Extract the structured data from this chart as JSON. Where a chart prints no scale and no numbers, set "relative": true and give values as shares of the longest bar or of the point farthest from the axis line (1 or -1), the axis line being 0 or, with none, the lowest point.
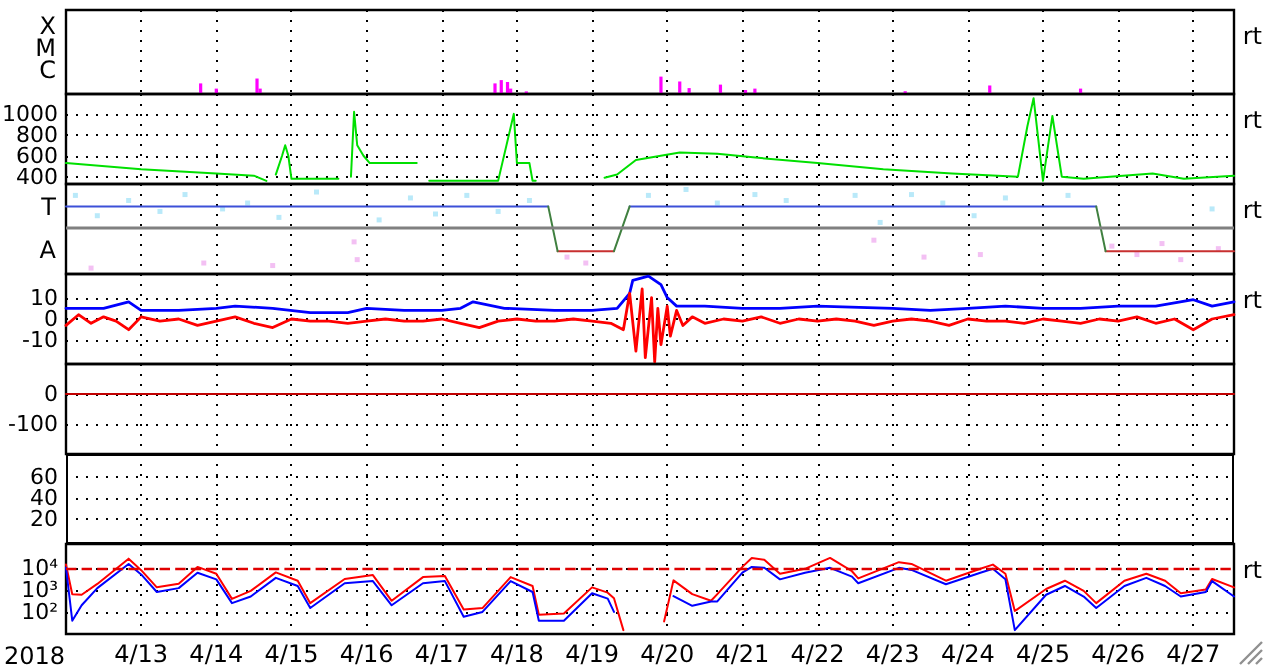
{
  "chart_data": [
    {
      "type": "bar",
      "relative": true,
      "grid": "x",
      "tick_labels": "y",
      "annotations": [
        "rt",
        "X",
        "M",
        "C"
      ],
      "xlim": [
        "2018-04-12T00:00",
        "2018-04-27T13:00"
      ],
      "xticks": [
        {
          "value": "2018-04-13",
          "label": null
        },
        {
          "value": "2018-04-14",
          "label": null
        },
        {
          "value": "2018-04-15",
          "label": null
        },
        {
          "value": "2018-04-16",
          "label": null
        },
        {
          "value": "2018-04-17",
          "label": null
        },
        {
          "value": "2018-04-18",
          "label": null
        },
        {
          "value": "2018-04-19",
          "label": null
        },
        {
          "value": "2018-04-20",
          "label": null
        },
        {
          "value": "2018-04-21",
          "label": null
        },
        {
          "value": "2018-04-22",
          "label": null
        },
        {
          "value": "2018-04-23",
          "label": null
        },
        {
          "value": "2018-04-24",
          "label": null
        },
        {
          "value": "2018-04-25",
          "label": null
        },
        {
          "value": "2018-04-26",
          "label": null
        },
        {
          "value": "2018-04-27",
          "label": null
        }
      ],
      "series": [
        {
          "color": "#ff00ff",
          "x": [
            "2018-04-13T19:00",
            "2018-04-14T00:00",
            "2018-04-14T13:00",
            "2018-04-14T14:00",
            "2018-04-17T17:00",
            "2018-04-17T19:00",
            "2018-04-17T21:00",
            "2018-04-17T22:00",
            "2018-04-18T03:00",
            "2018-04-19T22:00",
            "2018-04-20T04:00",
            "2018-04-20T07:00",
            "2018-04-20T17:00",
            "2018-04-21T01:00",
            "2018-04-21T04:00",
            "2018-04-23T04:00",
            "2018-04-24T07:00",
            "2018-04-25T12:00"
          ],
          "values": [
            0.61,
            0.31,
            0.89,
            0.31,
            0.61,
            0.8,
            0.69,
            0.31,
            0.15,
            1,
            0.72,
            0.34,
            0.54,
            0.23,
            0.31,
            0.16,
            0.49,
            0.31
          ]
        }
      ]
    },
    {
      "type": "line",
      "grid": true,
      "tick_labels": "y",
      "annotations": [
        "rt"
      ],
      "xlim": [
        "2018-04-12T00:00",
        "2018-04-27T13:00"
      ],
      "xticks": [
        {
          "value": "2018-04-13",
          "label": null
        },
        {
          "value": "2018-04-14",
          "label": null
        },
        {
          "value": "2018-04-15",
          "label": null
        },
        {
          "value": "2018-04-16",
          "label": null
        },
        {
          "value": "2018-04-17",
          "label": null
        },
        {
          "value": "2018-04-18",
          "label": null
        },
        {
          "value": "2018-04-19",
          "label": null
        },
        {
          "value": "2018-04-20",
          "label": null
        },
        {
          "value": "2018-04-21",
          "label": null
        },
        {
          "value": "2018-04-22",
          "label": null
        },
        {
          "value": "2018-04-23",
          "label": null
        },
        {
          "value": "2018-04-24",
          "label": null
        },
        {
          "value": "2018-04-25",
          "label": null
        },
        {
          "value": "2018-04-26",
          "label": null
        },
        {
          "value": "2018-04-27",
          "label": null
        }
      ],
      "ylim": [
        330,
        1190
      ],
      "yticks": [
        400,
        600,
        800,
        1000
      ],
      "series": [
        {
          "color": "#00e000",
          "x": [
            "2018-04-12T00:00",
            "2018-04-13T00:00",
            "2018-04-14T00:00",
            "2018-04-14T12:00",
            "2018-04-14T16:00",
            "2018-04-14T18:00",
            "2018-04-14T19:00",
            "2018-04-14T21:00",
            "2018-04-14T22:00",
            "2018-04-14T23:00",
            "2018-04-15T00:00",
            "2018-04-15T15:00",
            "2018-04-15T17:00",
            "2018-04-15T19:00",
            "2018-04-15T20:00",
            "2018-04-15T21:00",
            "2018-04-15T23:00",
            "2018-04-16T01:00",
            "2018-04-16T16:00",
            "2018-04-16T18:00",
            "2018-04-16T20:00",
            "2018-04-17T18:00",
            "2018-04-17T23:00",
            "2018-04-18T00:00",
            "2018-04-18T04:00",
            "2018-04-18T05:00",
            "2018-04-18T06:00",
            "2018-04-18T12:00",
            "2018-04-19T04:00",
            "2018-04-19T08:00",
            "2018-04-19T14:00",
            "2018-04-20T04:00",
            "2018-04-20T16:00",
            "2018-04-21T05:00",
            "2018-04-22T00:00",
            "2018-04-22T21:00",
            "2018-04-23T19:00",
            "2018-04-24T16:00",
            "2018-04-24T19:00",
            "2018-04-24T21:00",
            "2018-04-25T00:00",
            "2018-04-25T03:00",
            "2018-04-25T06:00",
            "2018-04-25T13:00",
            "2018-04-26T11:00",
            "2018-04-26T21:00",
            "2018-04-27T13:00"
          ],
          "values": [
            530,
            470,
            430,
            410,
            360,
            null,
            420,
            600,
            700,
            600,
            380,
            380,
            null,
            400,
            1020,
            700,
            600,
            530,
            530,
            null,
            360,
            360,
            1000,
            530,
            530,
            360,
            360,
            null,
            390,
            420,
            560,
            630,
            620,
            580,
            530,
            470,
            430,
            400,
            880,
            1150,
            360,
            980,
            400,
            380,
            430,
            380,
            410
          ]
        }
      ]
    },
    {
      "type": "line",
      "relative": true,
      "grid": "x",
      "tick_labels": "y",
      "annotations": [
        "rt",
        "T",
        "A"
      ],
      "xlim": [
        "2018-04-12T00:00",
        "2018-04-27T13:00"
      ],
      "xticks": [
        {
          "value": "2018-04-13",
          "label": null
        },
        {
          "value": "2018-04-14",
          "label": null
        },
        {
          "value": "2018-04-15",
          "label": null
        },
        {
          "value": "2018-04-16",
          "label": null
        },
        {
          "value": "2018-04-17",
          "label": null
        },
        {
          "value": "2018-04-18",
          "label": null
        },
        {
          "value": "2018-04-19",
          "label": null
        },
        {
          "value": "2018-04-20",
          "label": null
        },
        {
          "value": "2018-04-21",
          "label": null
        },
        {
          "value": "2018-04-22",
          "label": null
        },
        {
          "value": "2018-04-23",
          "label": null
        },
        {
          "value": "2018-04-24",
          "label": null
        },
        {
          "value": "2018-04-25",
          "label": null
        },
        {
          "value": "2018-04-26",
          "label": null
        },
        {
          "value": "2018-04-27",
          "label": null
        }
      ],
      "ref_lines": [
        {
          "axis": "y",
          "value": 0.54,
          "color": "#808080"
        }
      ],
      "series": [
        {
          "type": "scatter",
          "marker": "square",
          "color": "#a8e4f8",
          "x": [
            "2018-04-12T03:00",
            "2018-04-12T10:00",
            "2018-04-12T20:00",
            "2018-04-13T06:00",
            "2018-04-13T14:00",
            "2018-04-14T02:00",
            "2018-04-14T10:00",
            "2018-04-14T20:00",
            "2018-04-15T08:00",
            "2018-04-15T16:00",
            "2018-04-16T04:00",
            "2018-04-16T14:00",
            "2018-04-16T22:00",
            "2018-04-17T08:00",
            "2018-04-17T18:00",
            "2018-04-18T04:00",
            "2018-04-19T18:00",
            "2018-04-20T06:00",
            "2018-04-20T16:00",
            "2018-04-21T04:00",
            "2018-04-21T14:00",
            "2018-04-22T00:00",
            "2018-04-22T12:00",
            "2018-04-22T20:00",
            "2018-04-23T06:00",
            "2018-04-23T16:00",
            "2018-04-24T02:00",
            "2018-04-24T12:00",
            "2018-04-24T22:00",
            "2018-04-25T08:00",
            "2018-04-27T06:00"
          ],
          "values": [
            0.93,
            0.69,
            0.87,
            0.74,
            0.94,
            0.77,
            0.84,
            0.67,
            0.97,
            null,
            0.64,
            0.9,
            0.71,
            0.93,
            0.74,
            0.87,
            0.93,
            1,
            0.84,
            0.94,
            0.87,
            null,
            0.93,
            0.61,
            0.94,
            0.84,
            0.69,
            0.9,
            null,
            0.93,
            0.77
          ]
        },
        {
          "type": "scatter",
          "marker": "square",
          "color": "#f0b0f0",
          "x": [
            "2018-04-12T08:00",
            "2018-04-13T20:00",
            "2018-04-14T18:00",
            "2018-04-15T20:00",
            "2018-04-15T21:00",
            "2018-04-18T16:00",
            "2018-04-18T22:00",
            "2018-04-19T04:00",
            "2018-04-22T18:00",
            "2018-04-23T10:00",
            "2018-04-24T04:00",
            "2018-04-25T22:00",
            "2018-04-26T06:00",
            "2018-04-26T14:00",
            "2018-04-26T20:00",
            "2018-04-27T08:00"
          ],
          "values": [
            0.07,
            0.13,
            0.1,
            0.38,
            0.17,
            0.2,
            0.13,
            null,
            0.4,
            0.2,
            0.23,
            0.33,
            0.23,
            0.36,
            0.17,
            0.3
          ]
        },
        {
          "color": "#3c50d8",
          "x": [
            "2018-04-12T00:00",
            "2018-04-18T10:00",
            "2018-04-18T11:00",
            "2018-04-19T12:00",
            "2018-04-25T17:00"
          ],
          "values": [
            0.8,
            0.8,
            null,
            0.8,
            0.8
          ]
        },
        {
          "color": "#c83030",
          "x": [
            "2018-04-18T13:00",
            "2018-04-19T07:00",
            "2018-04-19T08:00",
            "2018-04-25T20:00",
            "2018-04-27T13:00"
          ],
          "values": [
            0.27,
            0.27,
            null,
            0.27,
            0.27
          ]
        },
        {
          "color": "#408040",
          "x": [
            "2018-04-18T10:00",
            "2018-04-18T13:00",
            "2018-04-18T14:00",
            "2018-04-19T07:00",
            "2018-04-19T12:00",
            "2018-04-19T13:00",
            "2018-04-25T17:00",
            "2018-04-25T20:00"
          ],
          "values": [
            0.8,
            0.27,
            null,
            0.27,
            0.8,
            null,
            0.8,
            0.27
          ]
        }
      ]
    },
    {
      "type": "line",
      "grid": true,
      "tick_labels": "y",
      "annotations": [
        "rt"
      ],
      "xlim": [
        "2018-04-12T00:00",
        "2018-04-27T13:00"
      ],
      "xticks": [
        {
          "value": "2018-04-13",
          "label": null
        },
        {
          "value": "2018-04-14",
          "label": null
        },
        {
          "value": "2018-04-15",
          "label": null
        },
        {
          "value": "2018-04-16",
          "label": null
        },
        {
          "value": "2018-04-17",
          "label": null
        },
        {
          "value": "2018-04-18",
          "label": null
        },
        {
          "value": "2018-04-19",
          "label": null
        },
        {
          "value": "2018-04-20",
          "label": null
        },
        {
          "value": "2018-04-21",
          "label": null
        },
        {
          "value": "2018-04-22",
          "label": null
        },
        {
          "value": "2018-04-23",
          "label": null
        },
        {
          "value": "2018-04-24",
          "label": null
        },
        {
          "value": "2018-04-25",
          "label": null
        },
        {
          "value": "2018-04-26",
          "label": null
        },
        {
          "value": "2018-04-27",
          "label": null
        }
      ],
      "ylim": [
        -21,
        21
      ],
      "yticks": [
        -10,
        0,
        10
      ],
      "series": [
        {
          "color": "#0000ff",
          "x": [
            "2018-04-12T00:00",
            "2018-04-12T12:00",
            "2018-04-12T20:00",
            "2018-04-13T00:00",
            "2018-04-13T12:00",
            "2018-04-14T00:00",
            "2018-04-14T06:00",
            "2018-04-14T18:00",
            "2018-04-15T06:00",
            "2018-04-15T18:00",
            "2018-04-16T00:00",
            "2018-04-16T12:00",
            "2018-04-17T00:00",
            "2018-04-17T06:00",
            "2018-04-17T10:00",
            "2018-04-17T20:00",
            "2018-04-18T12:00",
            "2018-04-19T00:00",
            "2018-04-19T08:00",
            "2018-04-19T12:00",
            "2018-04-19T13:00",
            "2018-04-19T18:00",
            "2018-04-19T22:00",
            "2018-04-20T00:00",
            "2018-04-20T03:00",
            "2018-04-20T12:00",
            "2018-04-21T00:00",
            "2018-04-21T12:00",
            "2018-04-22T00:00",
            "2018-04-23T00:00",
            "2018-04-23T12:00",
            "2018-04-24T00:00",
            "2018-04-24T12:00",
            "2018-04-25T00:00",
            "2018-04-25T12:00",
            "2018-04-26T00:00",
            "2018-04-26T12:00",
            "2018-04-27T00:00",
            "2018-04-27T06:00",
            "2018-04-27T13:00"
          ],
          "values": [
            5,
            5,
            8,
            4,
            4,
            5,
            6,
            5,
            3,
            3,
            5,
            4,
            4,
            5,
            8,
            5,
            4,
            4,
            5,
            12,
            18,
            20,
            16,
            10,
            6,
            6,
            5,
            5,
            6,
            5,
            4,
            5,
            6,
            5,
            5,
            6,
            6,
            9,
            6,
            8
          ]
        },
        {
          "color": "#ff0000",
          "x": [
            "2018-04-12T00:00",
            "2018-04-12T04:00",
            "2018-04-12T08:00",
            "2018-04-12T12:00",
            "2018-04-12T16:00",
            "2018-04-12T20:00",
            "2018-04-13T00:00",
            "2018-04-13T06:00",
            "2018-04-13T12:00",
            "2018-04-13T18:00",
            "2018-04-14T00:00",
            "2018-04-14T06:00",
            "2018-04-14T12:00",
            "2018-04-14T18:00",
            "2018-04-15T00:00",
            "2018-04-15T06:00",
            "2018-04-15T12:00",
            "2018-04-15T18:00",
            "2018-04-16T00:00",
            "2018-04-16T06:00",
            "2018-04-16T12:00",
            "2018-04-16T18:00",
            "2018-04-17T00:00",
            "2018-04-17T06:00",
            "2018-04-17T12:00",
            "2018-04-17T18:00",
            "2018-04-18T00:00",
            "2018-04-18T06:00",
            "2018-04-18T12:00",
            "2018-04-18T18:00",
            "2018-04-19T00:00",
            "2018-04-19T06:00",
            "2018-04-19T10:00",
            "2018-04-19T12:00",
            "2018-04-19T14:00",
            "2018-04-19T16:00",
            "2018-04-19T17:00",
            "2018-04-19T19:00",
            "2018-04-19T20:00",
            "2018-04-19T21:00",
            "2018-04-19T22:00",
            "2018-04-20T00:00",
            "2018-04-20T01:00",
            "2018-04-20T03:00",
            "2018-04-20T05:00",
            "2018-04-20T08:00",
            "2018-04-20T12:00",
            "2018-04-20T18:00",
            "2018-04-21T00:00",
            "2018-04-21T06:00",
            "2018-04-21T12:00",
            "2018-04-21T18:00",
            "2018-04-22T00:00",
            "2018-04-22T06:00",
            "2018-04-22T12:00",
            "2018-04-22T18:00",
            "2018-04-23T00:00",
            "2018-04-23T06:00",
            "2018-04-23T12:00",
            "2018-04-23T18:00",
            "2018-04-24T00:00",
            "2018-04-24T06:00",
            "2018-04-24T12:00",
            "2018-04-24T18:00",
            "2018-04-25T00:00",
            "2018-04-25T06:00",
            "2018-04-25T12:00",
            "2018-04-25T18:00",
            "2018-04-26T00:00",
            "2018-04-26T06:00",
            "2018-04-26T12:00",
            "2018-04-26T18:00",
            "2018-04-27T00:00",
            "2018-04-27T06:00",
            "2018-04-27T13:00"
          ],
          "values": [
            -3,
            2,
            -2,
            1,
            -1,
            -5,
            1,
            -1,
            0,
            -3,
            -1,
            1,
            -2,
            -4,
            0,
            -1,
            -1,
            -2,
            -1,
            0,
            -1,
            -1,
            0,
            -2,
            -4,
            -1,
            0,
            -1,
            -1,
            0,
            -1,
            -2,
            -5,
            12,
            -15,
            14,
            -18,
            10,
            -20,
            5,
            -12,
            6,
            -8,
            4,
            -3,
            1,
            -2,
            0,
            -1,
            1,
            -2,
            0,
            -1,
            0,
            -1,
            -3,
            -1,
            0,
            -1,
            -3,
            0,
            -1,
            -1,
            -2,
            0,
            -1,
            -2,
            0,
            -1,
            1,
            -2,
            0,
            -5,
            0,
            2
          ]
        }
      ]
    },
    {
      "type": "line",
      "grid": true,
      "tick_labels": "y",
      "xlim": [
        "2018-04-12T00:00",
        "2018-04-27T13:00"
      ],
      "xticks": [
        {
          "value": "2018-04-13",
          "label": null
        },
        {
          "value": "2018-04-14",
          "label": null
        },
        {
          "value": "2018-04-15",
          "label": null
        },
        {
          "value": "2018-04-16",
          "label": null
        },
        {
          "value": "2018-04-17",
          "label": null
        },
        {
          "value": "2018-04-18",
          "label": null
        },
        {
          "value": "2018-04-19",
          "label": null
        },
        {
          "value": "2018-04-20",
          "label": null
        },
        {
          "value": "2018-04-21",
          "label": null
        },
        {
          "value": "2018-04-22",
          "label": null
        },
        {
          "value": "2018-04-23",
          "label": null
        },
        {
          "value": "2018-04-24",
          "label": null
        },
        {
          "value": "2018-04-25",
          "label": null
        },
        {
          "value": "2018-04-26",
          "label": null
        },
        {
          "value": "2018-04-27",
          "label": null
        }
      ],
      "ylim": [
        -200,
        100
      ],
      "yticks": [
        -100,
        0
      ],
      "series": [
        {
          "color": "#c00000",
          "x": [
            "2018-04-12T00:00",
            "2018-04-27T13:00"
          ],
          "values": [
            0,
            0
          ]
        }
      ]
    },
    {
      "type": "line",
      "grid": true,
      "tick_labels": "y",
      "xlim": [
        "2018-04-12T00:00",
        "2018-04-27T13:00"
      ],
      "xticks": [
        {
          "value": "2018-04-13",
          "label": null
        },
        {
          "value": "2018-04-14",
          "label": null
        },
        {
          "value": "2018-04-15",
          "label": null
        },
        {
          "value": "2018-04-16",
          "label": null
        },
        {
          "value": "2018-04-17",
          "label": null
        },
        {
          "value": "2018-04-18",
          "label": null
        },
        {
          "value": "2018-04-19",
          "label": null
        },
        {
          "value": "2018-04-20",
          "label": null
        },
        {
          "value": "2018-04-21",
          "label": null
        },
        {
          "value": "2018-04-22",
          "label": null
        },
        {
          "value": "2018-04-23",
          "label": null
        },
        {
          "value": "2018-04-24",
          "label": null
        },
        {
          "value": "2018-04-25",
          "label": null
        },
        {
          "value": "2018-04-26",
          "label": null
        },
        {
          "value": "2018-04-27",
          "label": null
        }
      ],
      "ylim": [
        -3,
        81
      ],
      "yticks": [
        20,
        40,
        60
      ]
    },
    {
      "type": "line",
      "log": true,
      "grid": true,
      "annotations": [
        "rt"
      ],
      "xlabel": "2018",
      "xlim": [
        "2018-04-12T00:00",
        "2018-04-27T13:00"
      ],
      "xticks": [
        {
          "value": "2018-04-13",
          "label": "4/13"
        },
        {
          "value": "2018-04-14",
          "label": "4/14"
        },
        {
          "value": "2018-04-15",
          "label": "4/15"
        },
        {
          "value": "2018-04-16",
          "label": "4/16"
        },
        {
          "value": "2018-04-17",
          "label": "4/17"
        },
        {
          "value": "2018-04-18",
          "label": "4/18"
        },
        {
          "value": "2018-04-19",
          "label": "4/19"
        },
        {
          "value": "2018-04-20",
          "label": "4/20"
        },
        {
          "value": "2018-04-21",
          "label": "4/21"
        },
        {
          "value": "2018-04-22",
          "label": "4/22"
        },
        {
          "value": "2018-04-23",
          "label": "4/23"
        },
        {
          "value": "2018-04-24",
          "label": "4/24"
        },
        {
          "value": "2018-04-25",
          "label": "4/25"
        },
        {
          "value": "2018-04-26",
          "label": "4/26"
        },
        {
          "value": "2018-04-27",
          "label": "4/27"
        }
      ],
      "ylim": [
        10,
        120000
      ],
      "yticks": [
        {
          "value": 100,
          "label": "10²"
        },
        {
          "value": 1000,
          "label": "10³"
        },
        {
          "value": 10000,
          "label": "10⁴"
        }
      ],
      "ref_lines": [
        {
          "axis": "y",
          "value": 10000,
          "color": "#e00000",
          "line_style": "dashed"
        }
      ],
      "series": [
        {
          "color": "#ff0000",
          "x": [
            "2018-04-12T00:00",
            "2018-04-12T02:00",
            "2018-04-12T05:00",
            "2018-04-12T10:00",
            "2018-04-12T20:00",
            "2018-04-13T00:00",
            "2018-04-13T05:00",
            "2018-04-13T12:00",
            "2018-04-13T18:00",
            "2018-04-14T00:00",
            "2018-04-14T05:00",
            "2018-04-14T11:00",
            "2018-04-14T19:00",
            "2018-04-15T02:00",
            "2018-04-15T06:00",
            "2018-04-15T17:00",
            "2018-04-16T02:00",
            "2018-04-16T08:00",
            "2018-04-16T18:00",
            "2018-04-17T01:00",
            "2018-04-17T07:00",
            "2018-04-17T13:00",
            "2018-04-17T22:00",
            "2018-04-18T05:00",
            "2018-04-18T07:00",
            "2018-04-18T15:00",
            "2018-04-19T00:00",
            "2018-04-19T05:00",
            "2018-04-19T07:00",
            "2018-04-19T10:00",
            "2018-04-19T13:00",
            "2018-04-19T17:00",
            "2018-04-19T23:00",
            "2018-04-20T02:00",
            "2018-04-20T08:00",
            "2018-04-20T14:00",
            "2018-04-20T16:00",
            "2018-04-21T00:00",
            "2018-04-21T03:00",
            "2018-04-21T07:00",
            "2018-04-21T12:00",
            "2018-04-21T20:00",
            "2018-04-22T04:00",
            "2018-04-22T11:00",
            "2018-04-22T13:00",
            "2018-04-23T02:00",
            "2018-04-23T06:00",
            "2018-04-23T17:00",
            "2018-04-24T04:00",
            "2018-04-24T08:00",
            "2018-04-24T12:00",
            "2018-04-24T15:00",
            "2018-04-25T01:00",
            "2018-04-25T07:00",
            "2018-04-25T13:00",
            "2018-04-25T17:00",
            "2018-04-26T02:00",
            "2018-04-26T09:00",
            "2018-04-26T15:00",
            "2018-04-26T20:00",
            "2018-04-27T04:00",
            "2018-04-27T06:00",
            "2018-04-27T13:00"
          ],
          "values": [
            14000,
            630,
            600,
            1860,
            26000,
            7800,
            1300,
            1900,
            11000,
            5400,
            390,
            900,
            6200,
            2600,
            250,
            3100,
            4700,
            320,
            3800,
            4300,
            130,
            150,
            3800,
            1500,
            75,
            85,
            1300,
            750,
            420,
            15,
            null,
            null,
            37,
            2700,
            640,
            320,
            640,
            11000,
            28000,
            23000,
            5400,
            9000,
            28000,
            7000,
            3300,
            18000,
            15000,
            2600,
            9000,
            14000,
            5400,
            110,
            1100,
            2600,
            900,
            250,
            2600,
            5400,
            2600,
            700,
            1050,
            3100,
            1300
          ]
        },
        {
          "color": "#0000ff",
          "x": [
            "2018-04-12T00:00",
            "2018-04-12T02:00",
            "2018-04-12T05:00",
            "2018-04-12T10:00",
            "2018-04-12T20:00",
            "2018-04-13T00:00",
            "2018-04-13T05:00",
            "2018-04-13T12:00",
            "2018-04-13T18:00",
            "2018-04-14T00:00",
            "2018-04-14T05:00",
            "2018-04-14T11:00",
            "2018-04-14T19:00",
            "2018-04-15T02:00",
            "2018-04-15T06:00",
            "2018-04-15T17:00",
            "2018-04-16T02:00",
            "2018-04-16T08:00",
            "2018-04-16T18:00",
            "2018-04-17T01:00",
            "2018-04-17T07:00",
            "2018-04-17T13:00",
            "2018-04-17T22:00",
            "2018-04-18T05:00",
            "2018-04-18T07:00",
            "2018-04-18T15:00",
            "2018-04-19T00:00",
            "2018-04-19T05:00",
            "2018-04-19T07:00",
            "2018-04-19T10:00",
            "2018-04-19T13:00",
            "2018-04-19T17:00",
            "2018-04-19T23:00",
            "2018-04-20T02:00",
            "2018-04-20T08:00",
            "2018-04-20T14:00",
            "2018-04-20T16:00",
            "2018-04-21T00:00",
            "2018-04-21T03:00",
            "2018-04-21T07:00",
            "2018-04-21T12:00",
            "2018-04-21T20:00",
            "2018-04-22T04:00",
            "2018-04-22T11:00",
            "2018-04-22T13:00",
            "2018-04-23T02:00",
            "2018-04-23T06:00",
            "2018-04-23T17:00",
            "2018-04-24T04:00",
            "2018-04-24T08:00",
            "2018-04-24T12:00",
            "2018-04-24T15:00",
            "2018-04-25T01:00",
            "2018-04-25T07:00",
            "2018-04-25T13:00",
            "2018-04-25T17:00",
            "2018-04-26T02:00",
            "2018-04-26T09:00",
            "2018-04-26T15:00",
            "2018-04-26T20:00",
            "2018-04-27T04:00",
            "2018-04-27T06:00",
            "2018-04-27T13:00"
          ],
          "values": [
            10000,
            40,
            200,
            1200,
            15000,
            5000,
            800,
            1200,
            6000,
            3000,
            250,
            500,
            3500,
            1500,
            150,
            2000,
            2500,
            200,
            2000,
            2500,
            60,
            100,
            2500,
            800,
            40,
            40,
            700,
            400,
            100,
            null,
            null,
            null,
            null,
            520,
            190,
            300,
            300,
            6000,
            11000,
            10000,
            3000,
            6000,
            10000,
            4000,
            2000,
            10000,
            8000,
            1800,
            6000,
            9000,
            3000,
            15,
            600,
            1500,
            500,
            150,
            1500,
            3500,
            1500,
            500,
            800,
            2500,
            500
          ]
        }
      ]
    }
  ]
}
